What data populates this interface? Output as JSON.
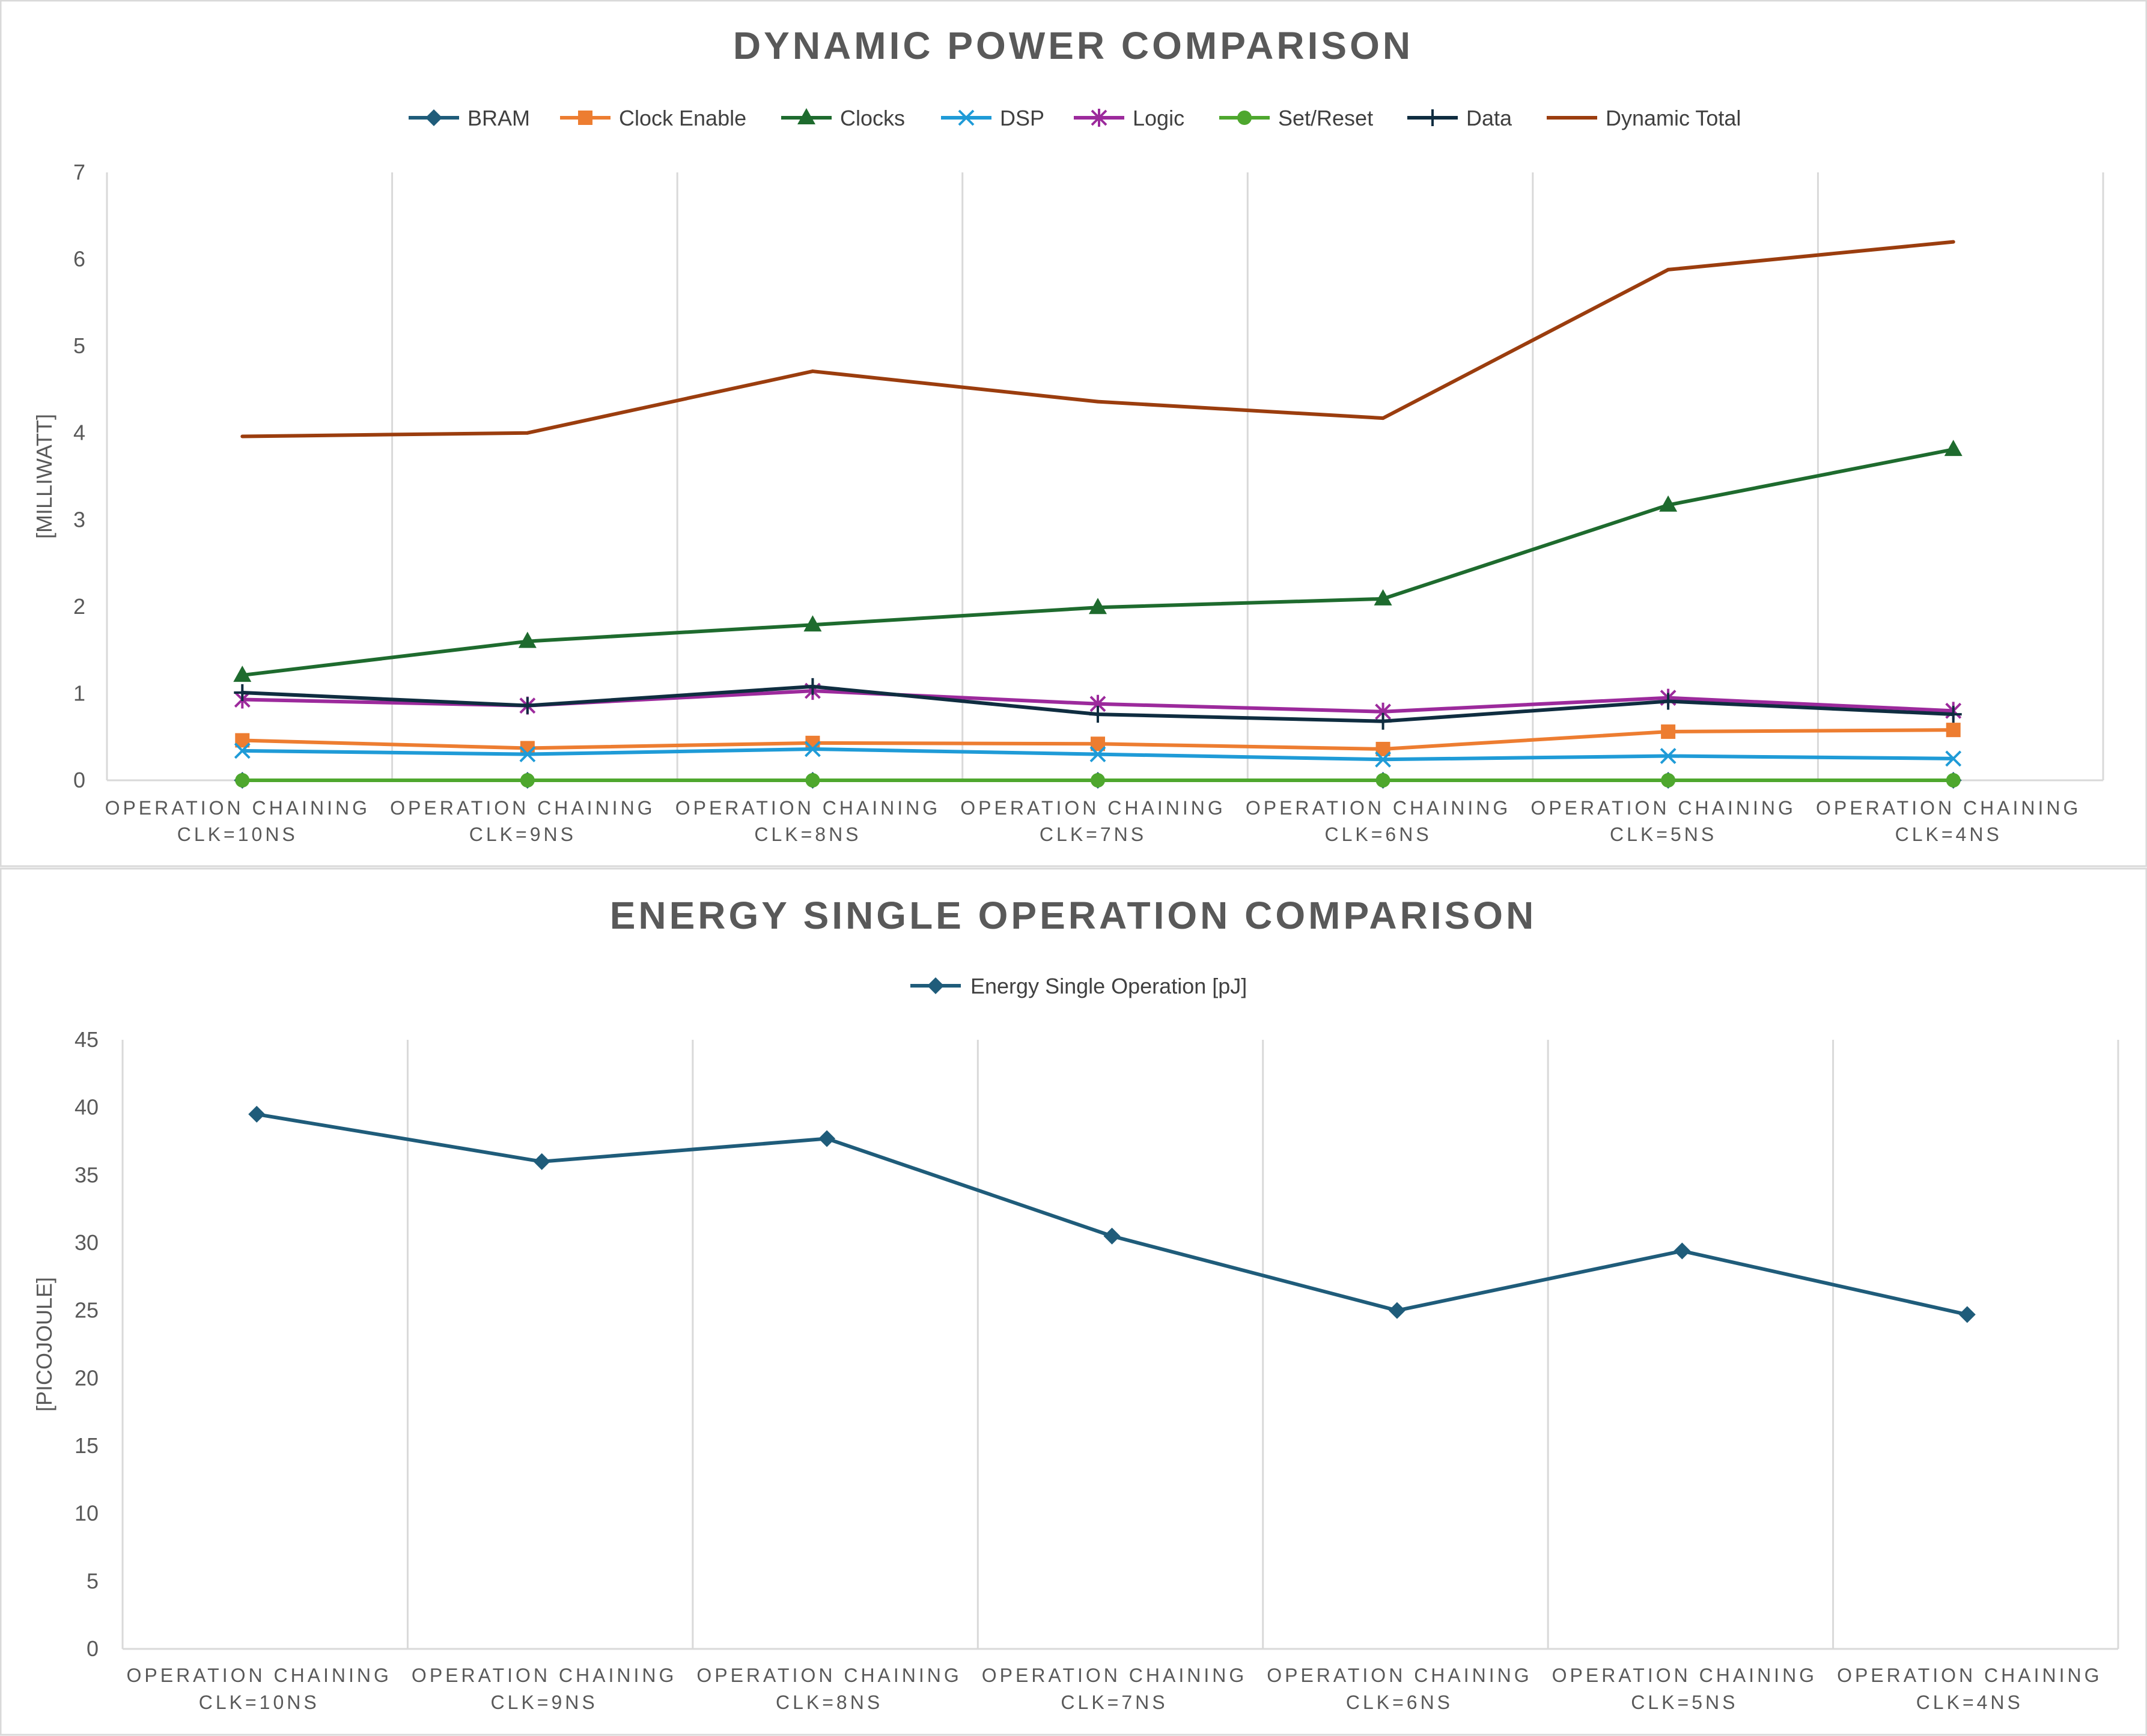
{
  "chart_data": [
    {
      "type": "line",
      "title": "DYNAMIC POWER COMPARISON",
      "ylabel": "[MILLIWATT]",
      "xlabel": "",
      "ylim": [
        0,
        7
      ],
      "yticks": [
        0,
        1,
        2,
        3,
        4,
        5,
        6,
        7
      ],
      "grid": "vertical",
      "legend": "top",
      "categories": [
        [
          "OPERATION CHAINING",
          "CLK=10NS"
        ],
        [
          "OPERATION CHAINING",
          "CLK=9NS"
        ],
        [
          "OPERATION CHAINING",
          "CLK=8NS"
        ],
        [
          "OPERATION CHAINING",
          "CLK=7NS"
        ],
        [
          "OPERATION CHAINING",
          "CLK=6NS"
        ],
        [
          "OPERATION CHAINING",
          "CLK=5NS"
        ],
        [
          "OPERATION CHAINING",
          "CLK=4NS"
        ]
      ],
      "series": [
        {
          "name": "BRAM",
          "color": "#1f5c7a",
          "marker": "diamond",
          "values": [
            0,
            0,
            0,
            0,
            0,
            0,
            0
          ]
        },
        {
          "name": "Clock Enable",
          "color": "#ed7d31",
          "marker": "square",
          "values": [
            0.46,
            0.37,
            0.43,
            0.42,
            0.36,
            0.56,
            0.58
          ]
        },
        {
          "name": "Clocks",
          "color": "#1e6b2e",
          "marker": "triangle",
          "values": [
            1.21,
            1.6,
            1.79,
            1.99,
            2.09,
            3.17,
            3.81
          ]
        },
        {
          "name": "DSP",
          "color": "#1f9bd7",
          "marker": "x",
          "values": [
            0.34,
            0.3,
            0.36,
            0.3,
            0.24,
            0.28,
            0.25
          ]
        },
        {
          "name": "Logic",
          "color": "#9c2a9c",
          "marker": "star",
          "values": [
            0.93,
            0.86,
            1.03,
            0.88,
            0.79,
            0.95,
            0.8
          ]
        },
        {
          "name": "Set/Reset",
          "color": "#4ea72e",
          "marker": "circle",
          "values": [
            0,
            0,
            0,
            0,
            0,
            0,
            0
          ]
        },
        {
          "name": "Data",
          "color": "#0f2d40",
          "marker": "plus",
          "values": [
            1.01,
            0.86,
            1.08,
            0.76,
            0.68,
            0.91,
            0.76
          ]
        },
        {
          "name": "Dynamic Total",
          "color": "#9b3d0e",
          "marker": "none",
          "values": [
            3.96,
            4.0,
            4.71,
            4.36,
            4.17,
            5.88,
            6.2
          ]
        }
      ]
    },
    {
      "type": "line",
      "title": "ENERGY SINGLE OPERATION COMPARISON",
      "ylabel": "[PICOJOULE]",
      "xlabel": "",
      "ylim": [
        0,
        45
      ],
      "yticks": [
        0,
        5,
        10,
        15,
        20,
        25,
        30,
        35,
        40,
        45
      ],
      "grid": "vertical",
      "legend": "top",
      "categories": [
        [
          "OPERATION CHAINING",
          "CLK=10NS"
        ],
        [
          "OPERATION CHAINING",
          "CLK=9NS"
        ],
        [
          "OPERATION CHAINING",
          "CLK=8NS"
        ],
        [
          "OPERATION CHAINING",
          "CLK=7NS"
        ],
        [
          "OPERATION CHAINING",
          "CLK=6NS"
        ],
        [
          "OPERATION CHAINING",
          "CLK=5NS"
        ],
        [
          "OPERATION CHAINING",
          "CLK=4NS"
        ]
      ],
      "series": [
        {
          "name": "Energy Single Operation [pJ]",
          "color": "#1f5c7a",
          "marker": "diamond",
          "values": [
            39.5,
            36.0,
            37.7,
            30.5,
            25.0,
            29.4,
            24.7
          ]
        }
      ]
    }
  ]
}
